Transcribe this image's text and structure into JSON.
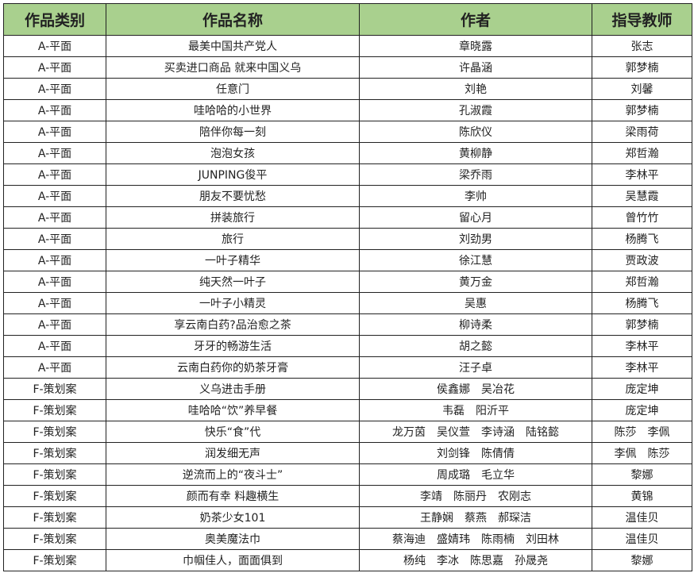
{
  "header_bg": "#a9d08e",
  "headers": [
    "作品类别",
    "作品名称",
    "作者",
    "指导教师"
  ],
  "rows": [
    [
      "A-平面",
      "最美中国共产党人",
      "章晓露",
      "张志"
    ],
    [
      "A-平面",
      "买卖进口商品 就来中国义乌",
      "许晶涵",
      "郭梦楠"
    ],
    [
      "A-平面",
      "任意门",
      "刘艳",
      "刘馨"
    ],
    [
      "A-平面",
      "哇哈哈的小世界",
      "孔淑霞",
      "郭梦楠"
    ],
    [
      "A-平面",
      "陪伴你每一刻",
      "陈欣仪",
      "梁雨荷"
    ],
    [
      "A-平面",
      "泡泡女孩",
      "黄柳静",
      "郑哲瀚"
    ],
    [
      "A-平面",
      "JUNPING俊平",
      "梁乔雨",
      "李林平"
    ],
    [
      "A-平面",
      "朋友不要忧愁",
      "李帅",
      "吴慧霞"
    ],
    [
      "A-平面",
      "拼装旅行",
      "留心月",
      "曾竹竹"
    ],
    [
      "A-平面",
      "旅行",
      "刘劲男",
      "杨腾飞"
    ],
    [
      "A-平面",
      "一叶子精华",
      "徐江慧",
      "贾政波"
    ],
    [
      "A-平面",
      "纯天然一叶子",
      "黄万金",
      "郑哲瀚"
    ],
    [
      "A-平面",
      "一叶子小精灵",
      "吴惠",
      "杨腾飞"
    ],
    [
      "A-平面",
      "享云南白药?品治愈之茶",
      "柳诗柔",
      "郭梦楠"
    ],
    [
      "A-平面",
      "牙牙的畅游生活",
      "胡之懿",
      "李林平"
    ],
    [
      "A-平面",
      "云南白药你的奶茶牙膏",
      "汪子卓",
      "李林平"
    ],
    [
      "F-策划案",
      "义乌进击手册",
      "侯鑫娜　吴冶花",
      "庞定坤"
    ],
    [
      "F-策划案",
      "哇哈哈“饮”养早餐",
      "韦磊　阳沂平",
      "庞定坤"
    ],
    [
      "F-策划案",
      "快乐“食”代",
      "龙万茵　吴仪萱　李诗涵　陆铭懿",
      "陈莎　李佩"
    ],
    [
      "F-策划案",
      "润发细无声",
      "刘剑锋　陈倩倩",
      "李佩　陈莎"
    ],
    [
      "F-策划案",
      "逆流而上的“夜斗士”",
      "周成璐　毛立华",
      "黎娜"
    ],
    [
      "F-策划案",
      "颜而有幸 料趣横生",
      "李靖　陈丽丹　农刚志",
      "黄锦"
    ],
    [
      "F-策划案",
      "奶茶少女101",
      "王静娴　蔡燕　郝琛洁",
      "温佳贝"
    ],
    [
      "F-策划案",
      "奥美魔法巾",
      "蔡海迪　盛婧玮　陈雨楠　刘田林",
      "温佳贝"
    ],
    [
      "F-策划案",
      "巾帼佳人，面面俱到",
      "杨纯　李冰　陈思嘉　孙晟尧",
      "黎娜"
    ]
  ]
}
